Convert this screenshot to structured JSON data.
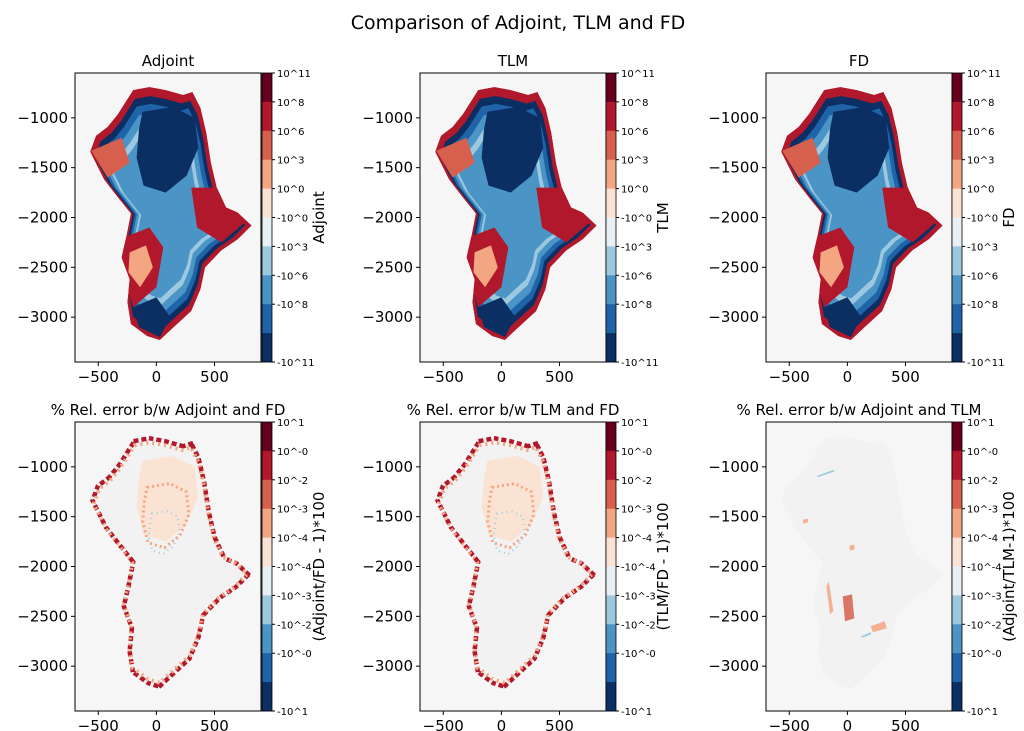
{
  "figure": {
    "title": "Comparison of Adjoint, TLM and FD"
  },
  "colors": {
    "top_levels": [
      "#0b2f63",
      "#1f63a8",
      "#4b95c6",
      "#9cc9e0",
      "#e7f0f5",
      "#fbe3d4",
      "#f4a582",
      "#d6604d",
      "#b2182b",
      "#67001f"
    ],
    "panel_background": "#f6f6f6",
    "ice_sheet_fill": "#f2f2f2"
  },
  "chart_data": [
    {
      "type": "heatmap",
      "title": "Adjoint",
      "colorbar_label": "Adjoint",
      "colorbar_ticks": [
        "10^11",
        "10^8",
        "10^6",
        "10^3",
        "10^0",
        "-10^0",
        "-10^3",
        "-10^6",
        "-10^8",
        "-10^11"
      ],
      "xticks": [
        "−500",
        "0",
        "500"
      ],
      "yticks": [
        "−1000",
        "−1500",
        "−2000",
        "−2500",
        "−3000"
      ],
      "xlim": [
        -700,
        900
      ],
      "ylim": [
        -3450,
        -550
      ],
      "grid": false,
      "map": "field"
    },
    {
      "type": "heatmap",
      "title": "TLM",
      "colorbar_label": "TLM",
      "colorbar_ticks": [
        "10^11",
        "10^8",
        "10^6",
        "10^3",
        "10^0",
        "-10^0",
        "-10^3",
        "-10^6",
        "-10^8",
        "-10^11"
      ],
      "xticks": [
        "−500",
        "0",
        "500"
      ],
      "yticks": [
        "−1000",
        "−1500",
        "−2000",
        "−2500",
        "−3000"
      ],
      "xlim": [
        -700,
        900
      ],
      "ylim": [
        -3450,
        -550
      ],
      "grid": false,
      "map": "field"
    },
    {
      "type": "heatmap",
      "title": "FD",
      "colorbar_label": "FD",
      "colorbar_ticks": [
        "10^11",
        "10^8",
        "10^6",
        "10^3",
        "10^0",
        "-10^0",
        "-10^3",
        "-10^6",
        "-10^8",
        "-10^11"
      ],
      "xticks": [
        "−500",
        "0",
        "500"
      ],
      "yticks": [
        "−1000",
        "−1500",
        "−2000",
        "−2500",
        "−3000"
      ],
      "xlim": [
        -700,
        900
      ],
      "ylim": [
        -3450,
        -550
      ],
      "grid": false,
      "map": "field"
    },
    {
      "type": "heatmap",
      "title": "% Rel. error b/w Adjoint and FD",
      "colorbar_label": "(Adjoint/FD - 1)*100",
      "colorbar_ticks": [
        "10^1",
        "10^-0",
        "10^-2",
        "10^-3",
        "10^-4",
        "-10^-4",
        "-10^-3",
        "-10^-2",
        "-10^-0",
        "-10^1"
      ],
      "xticks": [
        "−500",
        "0",
        "500"
      ],
      "yticks": [
        "−1000",
        "−1500",
        "−2000",
        "−2500",
        "−3000"
      ],
      "xlim": [
        -700,
        900
      ],
      "ylim": [
        -3450,
        -550
      ],
      "grid": false,
      "map": "error"
    },
    {
      "type": "heatmap",
      "title": "% Rel. error b/w TLM and FD",
      "colorbar_label": "(TLM/FD - 1)*100",
      "colorbar_ticks": [
        "10^1",
        "10^-0",
        "10^-2",
        "10^-3",
        "10^-4",
        "-10^-4",
        "-10^-3",
        "-10^-2",
        "-10^-0",
        "-10^1"
      ],
      "xticks": [
        "−500",
        "0",
        "500"
      ],
      "yticks": [
        "−1000",
        "−1500",
        "−2000",
        "−2500",
        "−3000"
      ],
      "xlim": [
        -700,
        900
      ],
      "ylim": [
        -3450,
        -550
      ],
      "grid": false,
      "map": "error"
    },
    {
      "type": "heatmap",
      "title": "% Rel. error b/w Adjoint and TLM",
      "colorbar_label": "(Adjoint/TLM-1)*100",
      "colorbar_ticks": [
        "10^1",
        "10^-0",
        "10^-2",
        "10^-3",
        "10^-4",
        "-10^-4",
        "-10^-3",
        "-10^-2",
        "-10^-0",
        "-10^1"
      ],
      "xticks": [
        "−500",
        "0",
        "500"
      ],
      "yticks": [
        "−1000",
        "−1500",
        "−2000",
        "−2500",
        "−3000"
      ],
      "xlim": [
        -700,
        900
      ],
      "ylim": [
        -3450,
        -550
      ],
      "grid": false,
      "map": "sparse"
    }
  ]
}
